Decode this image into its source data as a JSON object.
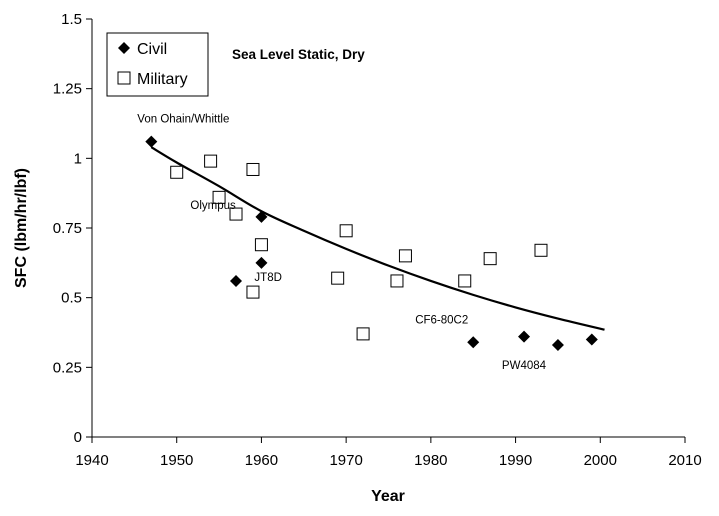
{
  "chart_data": {
    "type": "scatter",
    "title": "",
    "subtitle": "Sea Level Static, Dry",
    "xlabel": "Year",
    "ylabel": "SFC (lbm/hr/lbf)",
    "xlim": [
      1940,
      2010
    ],
    "ylim": [
      0,
      1.5
    ],
    "x_ticks": [
      1940,
      1950,
      1960,
      1970,
      1980,
      1990,
      2000,
      2010
    ],
    "x_tick_labels": [
      "1940",
      "1950",
      "1960",
      "1970",
      "1980",
      "1990",
      "2000",
      "2010"
    ],
    "y_ticks": [
      0,
      0.25,
      0.5,
      0.75,
      1,
      1.25,
      1.5
    ],
    "y_tick_labels": [
      "0",
      "0.25",
      "0.5",
      "0.75",
      "1",
      "1.25",
      "1.5"
    ],
    "grid": false,
    "legend_position": "top-left",
    "series": [
      {
        "name": "Civil",
        "marker": "filled-diamond",
        "color": "#000000",
        "points": [
          {
            "x": 1947,
            "y": 1.06
          },
          {
            "x": 1957,
            "y": 0.56
          },
          {
            "x": 1960,
            "y": 0.79
          },
          {
            "x": 1960,
            "y": 0.625
          },
          {
            "x": 1985,
            "y": 0.34
          },
          {
            "x": 1991,
            "y": 0.36
          },
          {
            "x": 1995,
            "y": 0.33
          },
          {
            "x": 1999,
            "y": 0.35
          }
        ]
      },
      {
        "name": "Military",
        "marker": "open-square",
        "color": "#000000",
        "points": [
          {
            "x": 1950,
            "y": 0.95
          },
          {
            "x": 1954,
            "y": 0.99
          },
          {
            "x": 1955,
            "y": 0.86
          },
          {
            "x": 1957,
            "y": 0.8
          },
          {
            "x": 1959,
            "y": 0.96
          },
          {
            "x": 1959,
            "y": 0.52
          },
          {
            "x": 1960,
            "y": 0.69
          },
          {
            "x": 1969,
            "y": 0.57
          },
          {
            "x": 1970,
            "y": 0.74
          },
          {
            "x": 1972,
            "y": 0.37
          },
          {
            "x": 1976,
            "y": 0.56
          },
          {
            "x": 1977,
            "y": 0.65
          },
          {
            "x": 1984,
            "y": 0.56
          },
          {
            "x": 1987,
            "y": 0.64
          },
          {
            "x": 1993,
            "y": 0.67
          }
        ]
      }
    ],
    "trendline": {
      "type": "exponential",
      "x": [
        1947,
        1950,
        1955,
        1960,
        1965,
        1970,
        1975,
        1980,
        1985,
        1990,
        1995,
        2000.5
      ],
      "y": [
        1.04,
        0.985,
        0.9,
        0.81,
        0.74,
        0.675,
        0.615,
        0.56,
        0.51,
        0.465,
        0.425,
        0.385
      ]
    },
    "annotations": [
      {
        "text": "Von Ohain/Whittle",
        "x": 1947,
        "y": 1.06
      },
      {
        "text": "Olympus",
        "x": 1960,
        "y": 0.79
      },
      {
        "text": "JT8D",
        "x": 1960,
        "y": 0.625
      },
      {
        "text": "CF6-80C2",
        "x": 1985,
        "y": 0.34
      },
      {
        "text": "PW4084",
        "x": 1995,
        "y": 0.33
      }
    ]
  }
}
